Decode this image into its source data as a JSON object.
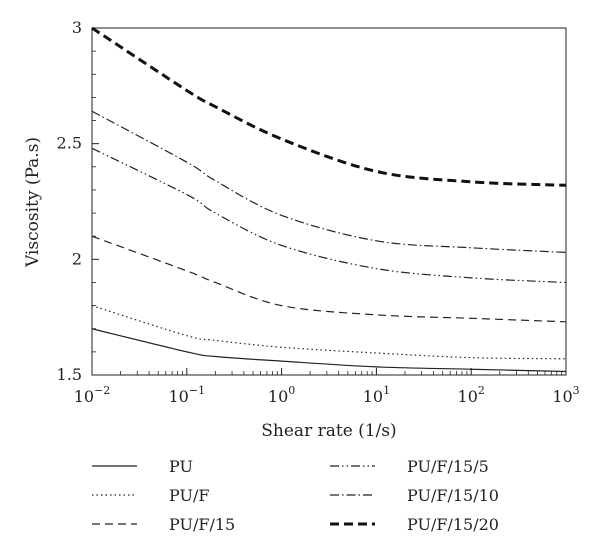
{
  "chart_data": {
    "type": "line",
    "xlabel": "Shear rate (1/s)",
    "ylabel": "Viscosity (Pa.s)",
    "xscale": "log",
    "xlim": [
      0.01,
      1000
    ],
    "ylim": [
      1.5,
      3
    ],
    "x_ticks": [
      {
        "base": "10",
        "exp": "−2",
        "value": 0.01
      },
      {
        "base": "10",
        "exp": "−1",
        "value": 0.1
      },
      {
        "base": "10",
        "exp": "0",
        "value": 1
      },
      {
        "base": "10",
        "exp": "1",
        "value": 10
      },
      {
        "base": "10",
        "exp": "2",
        "value": 100
      },
      {
        "base": "10",
        "exp": "3",
        "value": 1000
      }
    ],
    "y_ticks": [
      {
        "label": "1.5",
        "value": 1.5
      },
      {
        "label": "2",
        "value": 2
      },
      {
        "label": "2.5",
        "value": 2.5
      },
      {
        "label": "3",
        "value": 3
      }
    ],
    "grid": false,
    "legend_position": "below",
    "x": [
      0.01,
      0.1,
      0.2,
      1,
      10,
      100,
      1000
    ],
    "series": [
      {
        "name": "PU",
        "dash": "solid",
        "width": 1.2,
        "color": "#222222",
        "values": [
          1.7,
          1.6,
          1.58,
          1.56,
          1.535,
          1.525,
          1.515
        ]
      },
      {
        "name": "PU/F",
        "dash": "dotted",
        "width": 1.2,
        "color": "#222222",
        "values": [
          1.8,
          1.67,
          1.65,
          1.62,
          1.595,
          1.575,
          1.57
        ]
      },
      {
        "name": "PU/F/15",
        "dash": "dashed",
        "width": 1.2,
        "color": "#222222",
        "values": [
          2.1,
          1.95,
          1.9,
          1.8,
          1.76,
          1.745,
          1.73
        ]
      },
      {
        "name": "PU/F/15/5",
        "dash": "dash-dot-dot",
        "width": 1.2,
        "color": "#222222",
        "values": [
          2.48,
          2.28,
          2.2,
          2.06,
          1.96,
          1.92,
          1.9
        ]
      },
      {
        "name": "PU/F/15/10",
        "dash": "dash-dot",
        "width": 1.2,
        "color": "#222222",
        "values": [
          2.64,
          2.42,
          2.34,
          2.19,
          2.08,
          2.05,
          2.03
        ]
      },
      {
        "name": "PU/F/15/20",
        "dash": "heavy-dashed",
        "width": 3,
        "color": "#111111",
        "values": [
          3.0,
          2.73,
          2.66,
          2.52,
          2.38,
          2.335,
          2.32
        ]
      }
    ]
  }
}
